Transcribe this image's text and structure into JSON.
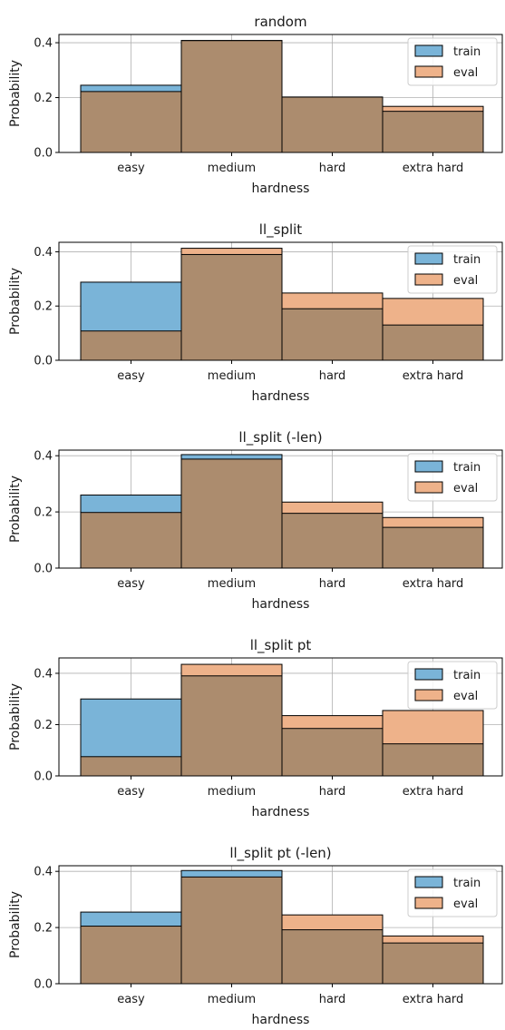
{
  "colors": {
    "train": "#7ab4d8",
    "eval": "#eeb28a",
    "overlap": "#ac8c6e",
    "grid": "#b0b0b0",
    "edge": "#000000"
  },
  "chart_data": [
    {
      "type": "bar",
      "title": "random",
      "xlabel": "hardness",
      "ylabel": "Probability",
      "categories": [
        "easy",
        "medium",
        "hard",
        "extra hard"
      ],
      "series": [
        {
          "name": "train",
          "values": [
            0.245,
            0.408,
            0.202,
            0.15
          ]
        },
        {
          "name": "eval",
          "values": [
            0.222,
            0.408,
            0.202,
            0.168
          ]
        }
      ],
      "yticks": [
        0.0,
        0.2,
        0.4
      ],
      "ytick_labels": [
        "0.0",
        "0.2",
        "0.4"
      ],
      "ylim": [
        0,
        0.43
      ],
      "grid": true,
      "legend": "upper right"
    },
    {
      "type": "bar",
      "title": "ll_split",
      "xlabel": "hardness",
      "ylabel": "Probability",
      "categories": [
        "easy",
        "medium",
        "hard",
        "extra hard"
      ],
      "series": [
        {
          "name": "train",
          "values": [
            0.288,
            0.39,
            0.19,
            0.13
          ]
        },
        {
          "name": "eval",
          "values": [
            0.108,
            0.413,
            0.248,
            0.228
          ]
        }
      ],
      "yticks": [
        0.0,
        0.2,
        0.4
      ],
      "ytick_labels": [
        "0.0",
        "0.2",
        "0.4"
      ],
      "ylim": [
        0,
        0.435
      ],
      "grid": true,
      "legend": "upper right"
    },
    {
      "type": "bar",
      "title": "ll_split (-len)",
      "xlabel": "hardness",
      "ylabel": "Probability",
      "categories": [
        "easy",
        "medium",
        "hard",
        "extra hard"
      ],
      "series": [
        {
          "name": "train",
          "values": [
            0.26,
            0.404,
            0.195,
            0.145
          ]
        },
        {
          "name": "eval",
          "values": [
            0.198,
            0.388,
            0.235,
            0.18
          ]
        }
      ],
      "yticks": [
        0.0,
        0.2,
        0.4
      ],
      "ytick_labels": [
        "0.0",
        "0.2",
        "0.4"
      ],
      "ylim": [
        0,
        0.42
      ],
      "grid": true,
      "legend": "upper right"
    },
    {
      "type": "bar",
      "title": "ll_split pt",
      "xlabel": "hardness",
      "ylabel": "Probability",
      "categories": [
        "easy",
        "medium",
        "hard",
        "extra hard"
      ],
      "series": [
        {
          "name": "train",
          "values": [
            0.3,
            0.39,
            0.185,
            0.125
          ]
        },
        {
          "name": "eval",
          "values": [
            0.075,
            0.435,
            0.235,
            0.255
          ]
        }
      ],
      "yticks": [
        0.0,
        0.2,
        0.4
      ],
      "ytick_labels": [
        "0.0",
        "0.2",
        "0.4"
      ],
      "ylim": [
        0,
        0.46
      ],
      "grid": true,
      "legend": "upper right"
    },
    {
      "type": "bar",
      "title": "ll_split pt (-len)",
      "xlabel": "hardness",
      "ylabel": "Probability",
      "categories": [
        "easy",
        "medium",
        "hard",
        "extra hard"
      ],
      "series": [
        {
          "name": "train",
          "values": [
            0.255,
            0.403,
            0.192,
            0.145
          ]
        },
        {
          "name": "eval",
          "values": [
            0.205,
            0.38,
            0.245,
            0.17
          ]
        }
      ],
      "yticks": [
        0.0,
        0.2,
        0.4
      ],
      "ytick_labels": [
        "0.0",
        "0.2",
        "0.4"
      ],
      "ylim": [
        0,
        0.42
      ],
      "grid": true,
      "legend": "upper right"
    }
  ]
}
